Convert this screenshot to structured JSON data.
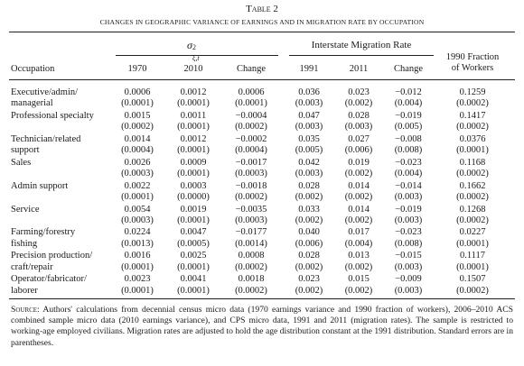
{
  "title": "Table 2",
  "subtitle": "CHANGES IN GEOGRAPHIC VARIANCE OF EARNINGS AND IN MIGRATION RATE BY OCCUPATION",
  "header": {
    "variance": {
      "symbol": "σ",
      "sup": "2",
      "sub": "ξ,t"
    },
    "migration": "Interstate Migration Rate",
    "fraction": [
      "1990 Fraction",
      "of Workers"
    ],
    "occupation": "Occupation",
    "columns": [
      "1970",
      "2010",
      "Change",
      "1991",
      "2011",
      "Change"
    ]
  },
  "table": {
    "rows": [
      {
        "label": [
          "Executive/admin/",
          "managerial"
        ],
        "values": [
          "0.0006",
          "0.0012",
          "0.0006",
          "0.036",
          "0.023",
          "−0.012",
          "0.1259"
        ],
        "errors": [
          "(0.0001)",
          "(0.0001)",
          "(0.0001)",
          "(0.003)",
          "(0.002)",
          "(0.004)",
          "(0.0002)"
        ]
      },
      {
        "label": [
          "Professional specialty"
        ],
        "values": [
          "0.0015",
          "0.0011",
          "−0.0004",
          "0.047",
          "0.028",
          "−0.019",
          "0.1417"
        ],
        "errors": [
          "(0.0002)",
          "(0.0001)",
          "(0.0002)",
          "(0.003)",
          "(0.003)",
          "(0.005)",
          "(0.0002)"
        ]
      },
      {
        "label": [
          "Technician/related",
          "support"
        ],
        "values": [
          "0.0014",
          "0.0012",
          "−0.0002",
          "0.035",
          "0.027",
          "−0.008",
          "0.0376"
        ],
        "errors": [
          "(0.0004)",
          "(0.0001)",
          "(0.0004)",
          "(0.005)",
          "(0.006)",
          "(0.008)",
          "(0.0001)"
        ]
      },
      {
        "label": [
          "Sales"
        ],
        "values": [
          "0.0026",
          "0.0009",
          "−0.0017",
          "0.042",
          "0.019",
          "−0.023",
          "0.1168"
        ],
        "errors": [
          "(0.0003)",
          "(0.0001)",
          "(0.0003)",
          "(0.003)",
          "(0.002)",
          "(0.004)",
          "(0.0002)"
        ]
      },
      {
        "label": [
          "Admin support"
        ],
        "values": [
          "0.0022",
          "0.0003",
          "−0.0018",
          "0.028",
          "0.014",
          "−0.014",
          "0.1662"
        ],
        "errors": [
          "(0.0001)",
          "(0.0000)",
          "(0.0002)",
          "(0.002)",
          "(0.002)",
          "(0.003)",
          "(0.0002)"
        ]
      },
      {
        "label": [
          "Service"
        ],
        "values": [
          "0.0054",
          "0.0019",
          "−0.0035",
          "0.033",
          "0.014",
          "−0.019",
          "0.1268"
        ],
        "errors": [
          "(0.0003)",
          "(0.0001)",
          "(0.0003)",
          "(0.002)",
          "(0.002)",
          "(0.003)",
          "(0.0002)"
        ]
      },
      {
        "label": [
          "Farming/forestry",
          "fishing"
        ],
        "values": [
          "0.0224",
          "0.0047",
          "−0.0177",
          "0.040",
          "0.017",
          "−0.023",
          "0.0227"
        ],
        "errors": [
          "(0.0013)",
          "(0.0005)",
          "(0.0014)",
          "(0.006)",
          "(0.004)",
          "(0.008)",
          "(0.0001)"
        ]
      },
      {
        "label": [
          "Precision production/",
          "craft/repair"
        ],
        "values": [
          "0.0016",
          "0.0025",
          "0.0008",
          "0.028",
          "0.013",
          "−0.015",
          "0.1117"
        ],
        "errors": [
          "(0.0001)",
          "(0.0001)",
          "(0.0002)",
          "(0.002)",
          "(0.002)",
          "(0.003)",
          "(0.0001)"
        ]
      },
      {
        "label": [
          "Operator/fabricator/",
          "laborer"
        ],
        "values": [
          "0.0023",
          "0.0041",
          "0.0018",
          "0.023",
          "0.015",
          "−0.009",
          "0.1507"
        ],
        "errors": [
          "(0.0001)",
          "(0.0001)",
          "(0.0002)",
          "(0.002)",
          "(0.002)",
          "(0.003)",
          "(0.0002)"
        ]
      }
    ]
  },
  "note": {
    "label": "Source:",
    "text": "Authors' calculations from decennial census micro data (1970 earnings variance and 1990 fraction of workers), 2006–2010 ACS combined sample micro data (2010 earnings variance), and CPS micro data, 1991 and 2011 (migration rates). The sample is restricted to working-age employed civilians. Migration rates are adjusted to hold the age distribution constant at the 1991 distribution. Standard errors are in parentheses."
  }
}
